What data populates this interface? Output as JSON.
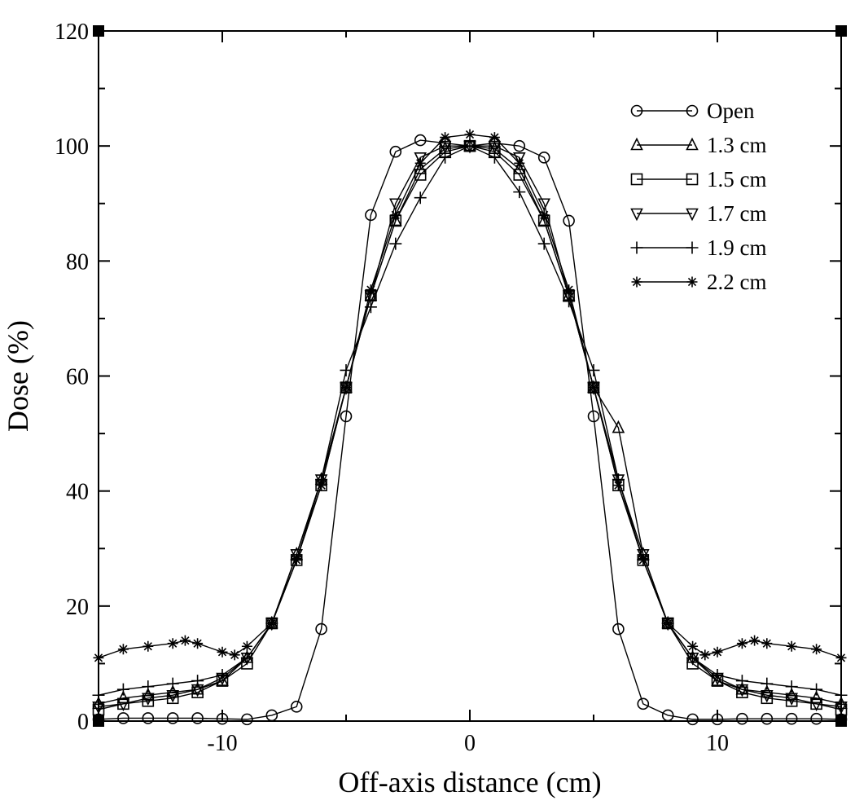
{
  "chart_data": {
    "type": "line",
    "title": "",
    "xlabel": "Off-axis distance (cm)",
    "ylabel": "Dose (%)",
    "xlim": [
      -15,
      15
    ],
    "ylim": [
      0,
      120
    ],
    "x_ticks": [
      -10,
      0,
      10
    ],
    "x_tick_labels": [
      "-10",
      "0",
      "10"
    ],
    "y_ticks": [
      0,
      20,
      40,
      60,
      80,
      100,
      120
    ],
    "y_tick_labels": [
      "0",
      "20",
      "40",
      "60",
      "80",
      "100",
      "120"
    ],
    "grid": false,
    "legend_position": "top-right",
    "series": [
      {
        "name": "Open",
        "marker": "circle",
        "x": [
          -15,
          -14,
          -13,
          -12,
          -11,
          -10,
          -9,
          -8,
          -7,
          -6,
          -5,
          -4,
          -3,
          -2,
          -1,
          0,
          1,
          2,
          3,
          4,
          5,
          6,
          7,
          8,
          9,
          10,
          11,
          12,
          13,
          14,
          15
        ],
        "values": [
          0.3,
          0.5,
          0.5,
          0.5,
          0.5,
          0.4,
          0.3,
          1,
          2.5,
          16,
          53,
          88,
          99,
          101,
          100.5,
          100,
          100.5,
          100,
          98,
          87,
          53,
          16,
          3,
          1,
          0.3,
          0.3,
          0.4,
          0.4,
          0.4,
          0.4,
          0.3
        ]
      },
      {
        "name": "1.3 cm",
        "marker": "triangle-up",
        "x": [
          -15,
          -14,
          -13,
          -12,
          -11,
          -10,
          -9,
          -8,
          -7,
          -6,
          -5,
          -4,
          -3,
          -2,
          -1,
          0,
          1,
          2,
          3,
          4,
          5,
          6,
          7,
          8,
          9,
          10,
          11,
          12,
          13,
          14,
          15
        ],
        "values": [
          3,
          4,
          4.5,
          5,
          5.5,
          7,
          11,
          17,
          29,
          42,
          58,
          74,
          87,
          96,
          99.5,
          100,
          99.5,
          96,
          87,
          74,
          58,
          51,
          29,
          17,
          11,
          7,
          5.5,
          5,
          4.5,
          4,
          3
        ]
      },
      {
        "name": "1.5 cm",
        "marker": "square",
        "x": [
          -15,
          -14,
          -13,
          -12,
          -11,
          -10,
          -9,
          -8,
          -7,
          -6,
          -5,
          -4,
          -3,
          -2,
          -1,
          0,
          1,
          2,
          3,
          4,
          5,
          6,
          7,
          8,
          9,
          10,
          11,
          12,
          13,
          14,
          15
        ],
        "values": [
          2,
          3,
          3.5,
          4,
          5,
          7,
          10,
          17,
          28,
          41,
          58,
          74,
          87,
          95,
          99,
          100,
          99,
          95,
          87,
          74,
          58,
          41,
          28,
          17,
          10,
          7,
          5,
          4,
          3.5,
          3,
          2
        ]
      },
      {
        "name": "1.7 cm",
        "marker": "triangle-down",
        "x": [
          -15,
          -14,
          -13,
          -12,
          -11,
          -10,
          -9,
          -8,
          -7,
          -6,
          -5,
          -4,
          -3,
          -2,
          -1,
          0,
          1,
          2,
          3,
          4,
          5,
          6,
          7,
          8,
          9,
          10,
          11,
          12,
          13,
          14,
          15
        ],
        "values": [
          2.5,
          3,
          4,
          4.5,
          5.5,
          7.5,
          11,
          17,
          29,
          42,
          58,
          74,
          90,
          98,
          100,
          100,
          100,
          98,
          90,
          74,
          58,
          42,
          29,
          17,
          11,
          7.5,
          5.5,
          4.5,
          4,
          3,
          2.5
        ]
      },
      {
        "name": "1.9 cm",
        "marker": "plus",
        "x": [
          -15,
          -14,
          -13,
          -12,
          -11,
          -10,
          -9,
          -8,
          -7,
          -6,
          -5,
          -4,
          -3,
          -2,
          -1,
          0,
          1,
          2,
          3,
          4,
          5,
          6,
          7,
          8,
          9,
          10,
          11,
          12,
          13,
          14,
          15
        ],
        "values": [
          4.5,
          5.5,
          6,
          6.5,
          7,
          8,
          11,
          17,
          28,
          42,
          61,
          72,
          83,
          91,
          98,
          100,
          98,
          92,
          83,
          73,
          61,
          42,
          28,
          17,
          11,
          8,
          7,
          6.5,
          6,
          5.5,
          4.5
        ]
      },
      {
        "name": "2.2 cm",
        "marker": "star",
        "x": [
          -15,
          -14,
          -13,
          -12,
          -11.5,
          -11,
          -10,
          -9.5,
          -9,
          -8,
          -7,
          -6,
          -5,
          -4,
          -3,
          -2,
          -1,
          0,
          1,
          2,
          3,
          4,
          5,
          6,
          7,
          8,
          9,
          9.5,
          10,
          11,
          11.5,
          12,
          13,
          14,
          15
        ],
        "values": [
          11,
          12.5,
          13,
          13.5,
          14,
          13.5,
          12,
          11.5,
          13,
          17,
          28,
          41,
          58,
          75,
          88,
          97,
          101.5,
          102,
          101.5,
          97,
          88,
          75,
          58,
          41,
          28,
          17,
          13,
          11.5,
          12,
          13.5,
          14,
          13.5,
          13,
          12.5,
          11
        ]
      }
    ]
  }
}
